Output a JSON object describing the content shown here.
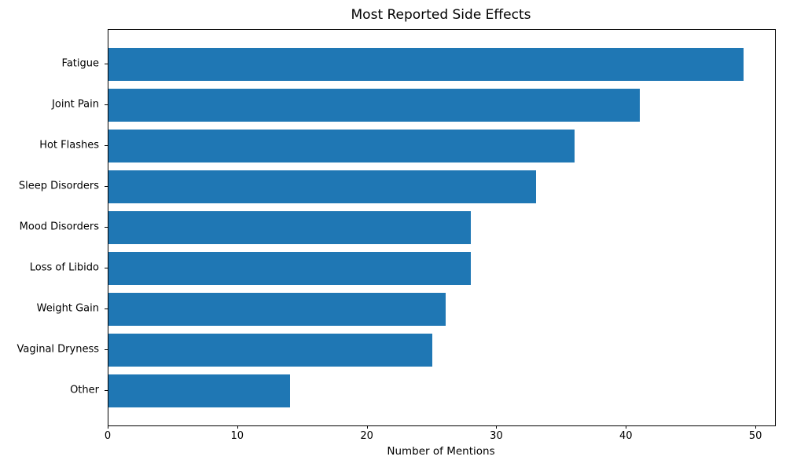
{
  "chart_data": {
    "type": "bar",
    "orientation": "horizontal",
    "title": "Most Reported Side Effects",
    "xlabel": "Number of Mentions",
    "ylabel": "",
    "categories": [
      "Fatigue",
      "Joint Pain",
      "Hot Flashes",
      "Sleep Disorders",
      "Mood Disorders",
      "Loss of Libido",
      "Weight Gain",
      "Vaginal Dryness",
      "Other"
    ],
    "values": [
      49,
      41,
      36,
      33,
      28,
      28,
      26,
      25,
      14
    ],
    "xticks": [
      0,
      10,
      20,
      30,
      40,
      50
    ],
    "xlim": [
      0,
      51.45
    ],
    "bar_color": "#1f77b4",
    "axis_color": "#000000",
    "background_color": "#ffffff",
    "grid": false,
    "legend": null
  }
}
